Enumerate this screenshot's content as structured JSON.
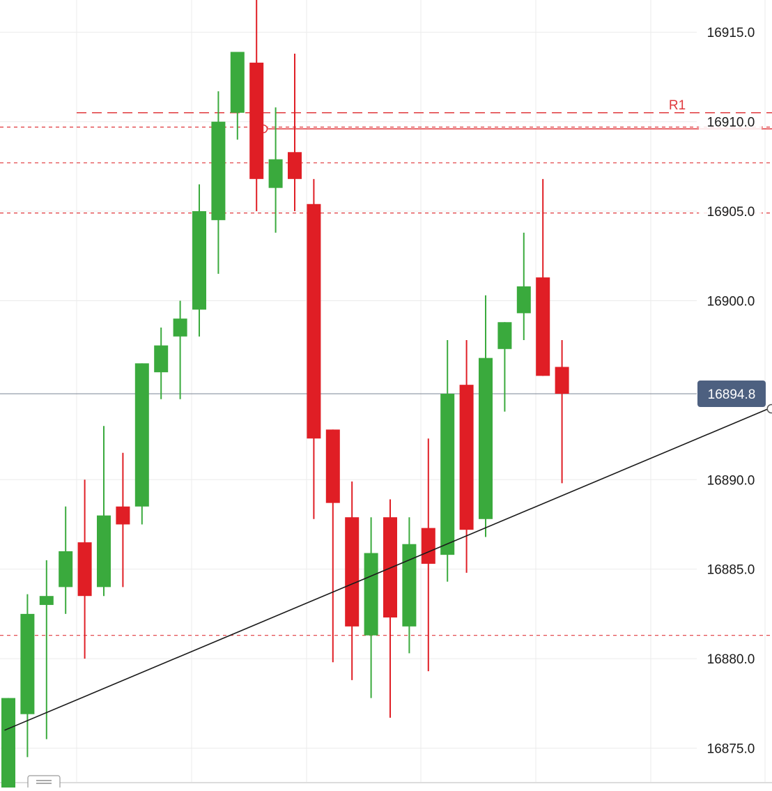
{
  "chart_data": {
    "type": "candlestick",
    "y_axis": {
      "range": [
        16872.8,
        16916.8
      ],
      "ticks": [
        "16915.0",
        "16910.0",
        "16905.0",
        "16900.0",
        "16890.0",
        "16885.0",
        "16880.0",
        "16875.0"
      ]
    },
    "current_price": {
      "value": 16894.8,
      "label": "16894.8"
    },
    "levels": [
      {
        "value": 16910.5,
        "label": "R1"
      },
      {
        "value": 16909.7,
        "label": ""
      },
      {
        "value": 16907.7,
        "label": ""
      },
      {
        "value": 16904.9,
        "label": ""
      },
      {
        "value": 16881.3,
        "label": ""
      }
    ],
    "horizontal_line": {
      "value": 16909.6
    },
    "trendline": {
      "from": {
        "bar": -0.2,
        "price": 16876.0
      },
      "to": {
        "bar": 39.9,
        "price": 16894.0
      }
    },
    "candles": [
      {
        "open": 16871.7,
        "high": 16877.8,
        "low": 16871.0,
        "close": 16877.8
      },
      {
        "open": 16876.9,
        "high": 16883.6,
        "low": 16874.5,
        "close": 16882.5
      },
      {
        "open": 16883.0,
        "high": 16885.5,
        "low": 16875.5,
        "close": 16883.5
      },
      {
        "open": 16884.0,
        "high": 16888.5,
        "low": 16882.5,
        "close": 16886.0
      },
      {
        "open": 16886.5,
        "high": 16890.0,
        "low": 16880.0,
        "close": 16883.5
      },
      {
        "open": 16884.0,
        "high": 16893.0,
        "low": 16883.5,
        "close": 16888.0
      },
      {
        "open": 16888.5,
        "high": 16891.5,
        "low": 16884.0,
        "close": 16887.5
      },
      {
        "open": 16888.5,
        "high": 16896.5,
        "low": 16887.5,
        "close": 16896.5
      },
      {
        "open": 16896.0,
        "high": 16898.5,
        "low": 16894.5,
        "close": 16897.5
      },
      {
        "open": 16898.0,
        "high": 16900.0,
        "low": 16894.5,
        "close": 16899.0
      },
      {
        "open": 16899.5,
        "high": 16906.5,
        "low": 16898.0,
        "close": 16905.0
      },
      {
        "open": 16904.5,
        "high": 16911.7,
        "low": 16901.5,
        "close": 16910.0
      },
      {
        "open": 16910.5,
        "high": 16913.9,
        "low": 16909.0,
        "close": 16913.9
      },
      {
        "open": 16913.3,
        "high": 16917.5,
        "low": 16905.0,
        "close": 16906.8
      },
      {
        "open": 16906.3,
        "high": 16910.8,
        "low": 16903.8,
        "close": 16907.9
      },
      {
        "open": 16908.3,
        "high": 16913.8,
        "low": 16905.0,
        "close": 16906.8
      },
      {
        "open": 16905.4,
        "high": 16906.8,
        "low": 16887.8,
        "close": 16892.3
      },
      {
        "open": 16892.8,
        "high": 16892.8,
        "low": 16879.8,
        "close": 16888.7
      },
      {
        "open": 16887.9,
        "high": 16889.9,
        "low": 16878.8,
        "close": 16881.8
      },
      {
        "open": 16881.3,
        "high": 16887.9,
        "low": 16877.8,
        "close": 16885.9
      },
      {
        "open": 16887.9,
        "high": 16888.9,
        "low": 16876.7,
        "close": 16882.3
      },
      {
        "open": 16881.8,
        "high": 16887.9,
        "low": 16880.3,
        "close": 16886.4
      },
      {
        "open": 16887.3,
        "high": 16892.3,
        "low": 16879.3,
        "close": 16885.3
      },
      {
        "open": 16885.8,
        "high": 16897.8,
        "low": 16884.3,
        "close": 16894.8
      },
      {
        "open": 16895.3,
        "high": 16897.8,
        "low": 16884.8,
        "close": 16887.2
      },
      {
        "open": 16887.8,
        "high": 16900.3,
        "low": 16886.8,
        "close": 16896.8
      },
      {
        "open": 16897.3,
        "high": 16898.8,
        "low": 16893.8,
        "close": 16898.8
      },
      {
        "open": 16899.3,
        "high": 16903.8,
        "low": 16897.8,
        "close": 16900.8
      },
      {
        "open": 16901.3,
        "high": 16906.8,
        "low": 16895.8,
        "close": 16895.8
      },
      {
        "open": 16896.3,
        "high": 16897.8,
        "low": 16889.8,
        "close": 16894.8
      }
    ],
    "colors": {
      "up": "#3aaa3d",
      "down": "#e01e25",
      "level": "#e0383c",
      "trendline": "#1a1a1a",
      "price_badge_bg": "#4d6080",
      "price_badge_text": "#ffffff",
      "grid": "#ebebeb",
      "axis_text": "#1a1a1a"
    }
  }
}
